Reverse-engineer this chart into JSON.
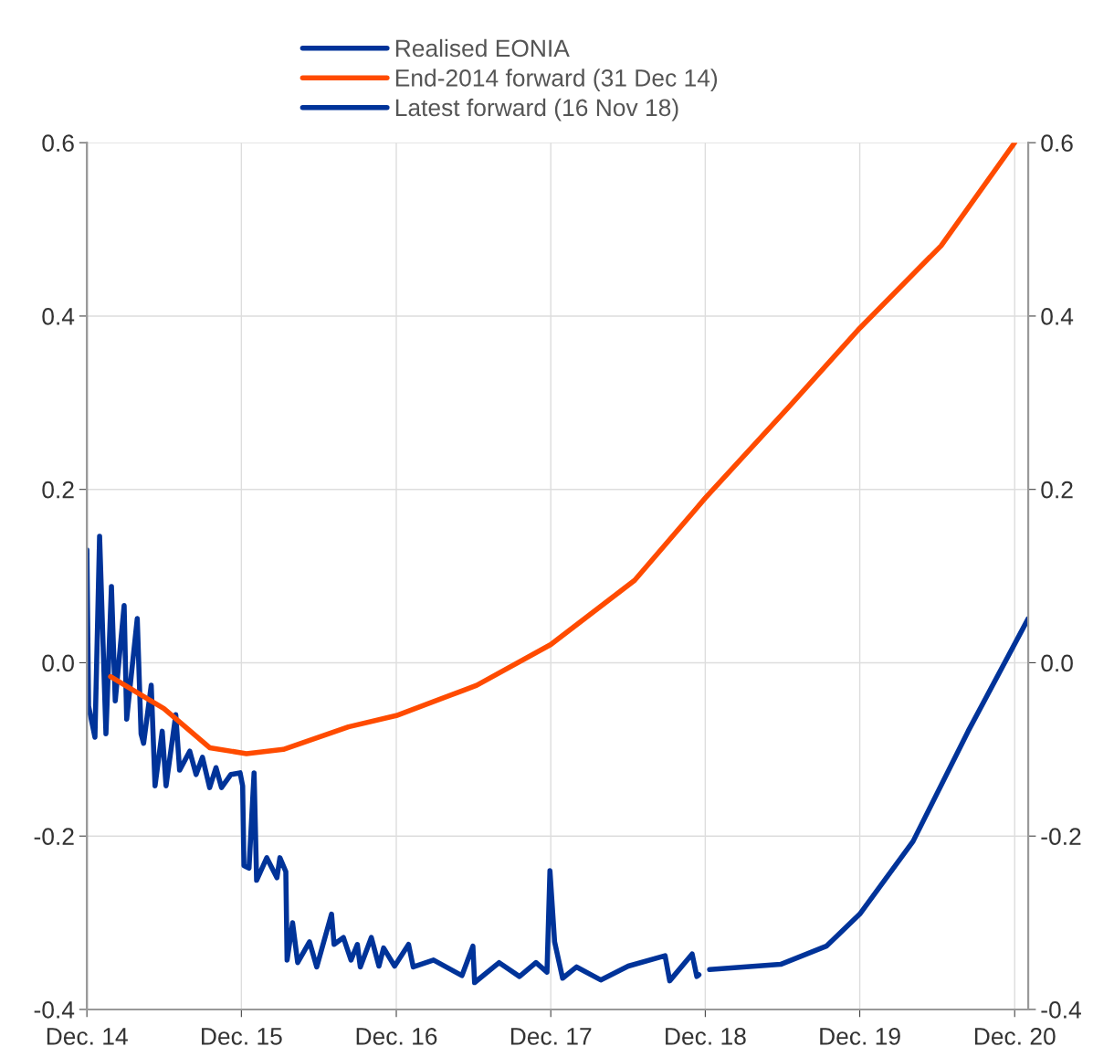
{
  "chart_data": {
    "type": "line",
    "series": [
      {
        "name": "Realised EONIA",
        "color": "#003399",
        "x": [
          "2014-12-01",
          "2014-12-05",
          "2014-12-20",
          "2014-12-31",
          "2015-01-15",
          "2015-01-28",
          "2015-02-06",
          "2015-02-27",
          "2015-03-05",
          "2015-03-30",
          "2015-04-08",
          "2015-04-14",
          "2015-05-02",
          "2015-05-11",
          "2015-05-28",
          "2015-06-06",
          "2015-06-29",
          "2015-07-08",
          "2015-08-01",
          "2015-08-16",
          "2015-08-31",
          "2015-09-17",
          "2015-10-02",
          "2015-10-15",
          "2015-11-06",
          "2015-11-28",
          "2015-12-04",
          "2015-12-07",
          "2015-12-19",
          "2015-12-31",
          "2016-01-06",
          "2016-01-30",
          "2016-02-23",
          "2016-03-01",
          "2016-03-15",
          "2016-03-18",
          "2016-03-31",
          "2016-04-12",
          "2016-05-10",
          "2016-05-27",
          "2016-07-01",
          "2016-07-07",
          "2016-07-29",
          "2016-08-16",
          "2016-08-31",
          "2016-09-07",
          "2016-10-03",
          "2016-10-21",
          "2016-11-01",
          "2016-11-27",
          "2016-12-30",
          "2017-01-10",
          "2017-02-27",
          "2017-05-05",
          "2017-05-31",
          "2017-06-04",
          "2017-08-01",
          "2017-09-18",
          "2017-10-27",
          "2017-11-22",
          "2017-11-29",
          "2017-12-10",
          "2017-12-29",
          "2018-01-31",
          "2018-03-29",
          "2018-06-02",
          "2018-08-28",
          "2018-09-08",
          "2018-10-31",
          "2018-11-11",
          "2018-11-16"
        ],
        "values": [
          0.13,
          -0.05,
          -0.086,
          0.146,
          -0.082,
          0.088,
          -0.044,
          0.066,
          -0.065,
          0.051,
          -0.082,
          -0.093,
          -0.026,
          -0.142,
          -0.079,
          -0.142,
          -0.06,
          -0.124,
          -0.102,
          -0.129,
          -0.109,
          -0.144,
          -0.121,
          -0.144,
          -0.129,
          -0.127,
          -0.142,
          -0.234,
          -0.237,
          -0.127,
          -0.251,
          -0.225,
          -0.248,
          -0.225,
          -0.241,
          -0.343,
          -0.3,
          -0.346,
          -0.322,
          -0.351,
          -0.29,
          -0.325,
          -0.317,
          -0.343,
          -0.325,
          -0.351,
          -0.317,
          -0.35,
          -0.329,
          -0.35,
          -0.325,
          -0.351,
          -0.343,
          -0.361,
          -0.327,
          -0.369,
          -0.346,
          -0.362,
          -0.346,
          -0.357,
          -0.24,
          -0.322,
          -0.364,
          -0.351,
          -0.366,
          -0.35,
          -0.338,
          -0.367,
          -0.336,
          -0.362,
          -0.36
        ]
      },
      {
        "name": "End-2014 forward (31 Dec 14)",
        "color": "#ff4b00",
        "x": [
          "2015-01-26",
          "2015-06-01",
          "2015-09-17",
          "2015-12-13",
          "2016-03-09",
          "2016-08-10",
          "2016-12-01",
          "2017-06-09",
          "2017-12-01",
          "2018-06-17",
          "2018-12-01",
          "2019-06-18",
          "2019-12-01",
          "2020-06-10",
          "2020-12-01"
        ],
        "values": [
          -0.016,
          -0.053,
          -0.098,
          -0.105,
          -0.1,
          -0.074,
          -0.061,
          -0.026,
          0.021,
          0.095,
          0.19,
          0.296,
          0.386,
          0.481,
          0.6
        ]
      },
      {
        "name": "Latest forward (16 Nov 18)",
        "color": "#003399",
        "x": [
          "2018-12-11",
          "2019-05-28",
          "2019-09-13",
          "2019-12-01",
          "2020-04-05",
          "2020-08-13",
          "2021-01-02"
        ],
        "values": [
          -0.354,
          -0.348,
          -0.327,
          -0.29,
          -0.206,
          -0.079,
          0.051
        ]
      }
    ],
    "xlim": [
      "2014-12-01",
      "2021-01-02"
    ],
    "xticks": [
      {
        "value": "2014-12-01",
        "label": "Dec. 14"
      },
      {
        "value": "2015-12-01",
        "label": "Dec. 15"
      },
      {
        "value": "2016-12-01",
        "label": "Dec. 16"
      },
      {
        "value": "2017-12-01",
        "label": "Dec. 17"
      },
      {
        "value": "2018-12-01",
        "label": "Dec. 18"
      },
      {
        "value": "2019-12-01",
        "label": "Dec. 19"
      },
      {
        "value": "2020-12-01",
        "label": "Dec. 20"
      }
    ],
    "ylim": [
      -0.4,
      0.6
    ],
    "yticks": [
      -0.4,
      -0.2,
      {
        "value": 0,
        "label": "0.0"
      },
      0.2,
      0.4,
      0.6
    ],
    "y2lim": [
      -0.4,
      0.6
    ],
    "y2ticks": [
      -0.4,
      -0.2,
      {
        "value": 0,
        "label": "0.0"
      },
      0.2,
      0.4,
      0.6
    ],
    "grid": true,
    "legend": "top",
    "marker": "none",
    "line_style": "solid"
  }
}
